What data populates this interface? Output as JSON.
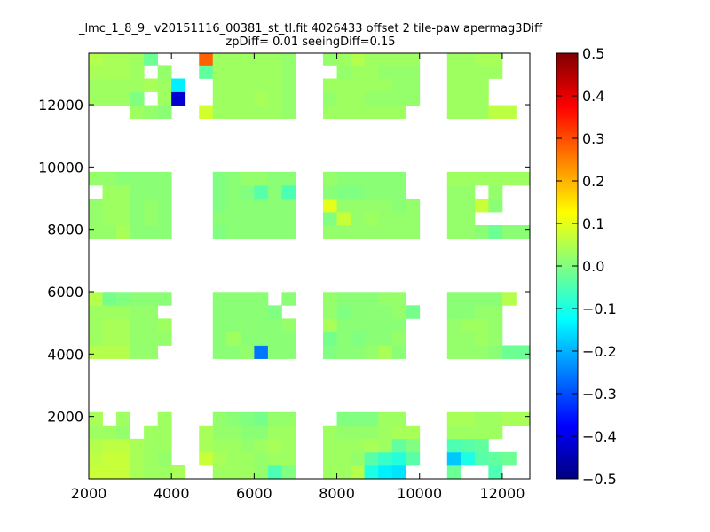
{
  "chart_data": {
    "type": "heatmap",
    "title_line1": "_lmc_1_8_9_ v20151116_00381_st_tl.fit 4026433 offset 2 tile-paw apermag3Diff",
    "title_line2": "zpDiff= 0.01 seeingDiff=0.15",
    "xlabel": "",
    "ylabel": "",
    "xlim": [
      2000,
      12667
    ],
    "ylim": [
      0,
      13650
    ],
    "xticks": [
      "2000",
      "4000",
      "6000",
      "8000",
      "10000",
      "12000"
    ],
    "xtick_values": [
      2000,
      4000,
      6000,
      8000,
      10000,
      12000
    ],
    "yticks": [
      "2000",
      "4000",
      "6000",
      "8000",
      "10000",
      "12000"
    ],
    "ytick_values": [
      2000,
      4000,
      6000,
      8000,
      10000,
      12000
    ],
    "colormap": "jet",
    "clim": [
      -0.5,
      0.5
    ],
    "colorbar_ticks": [
      "0.5",
      "0.4",
      "0.3",
      "0.2",
      "0.1",
      "0.0",
      "−0.1",
      "−0.2",
      "−0.3",
      "−0.4",
      "−0.5"
    ],
    "colorbar_tick_values": [
      0.5,
      0.4,
      0.3,
      0.2,
      0.1,
      0.0,
      -0.1,
      -0.2,
      -0.3,
      -0.4,
      -0.5
    ],
    "bin_x_start": 2000,
    "bin_x_width": 333.33,
    "bin_y_height": 428,
    "grid": false,
    "rows": [
      {
        "bin": 0,
        "values": [
          0.07,
          0.07,
          0.07,
          0.04,
          0.03,
          0.03,
          0.04,
          null,
          null,
          0.03,
          0.03,
          0.03,
          0.02,
          -0.05,
          0.0,
          null,
          null,
          0.03,
          0.03,
          0.05,
          -0.1,
          -0.14,
          -0.15,
          null,
          null,
          null,
          -0.02,
          null,
          null,
          -0.05,
          null,
          null
        ]
      },
      {
        "bin": 1,
        "values": [
          0.06,
          0.07,
          0.07,
          0.04,
          0.03,
          0.02,
          null,
          null,
          0.07,
          0.04,
          0.03,
          0.03,
          0.02,
          0.03,
          0.03,
          null,
          null,
          0.03,
          0.03,
          0.02,
          -0.04,
          -0.07,
          -0.09,
          -0.04,
          null,
          null,
          -0.18,
          -0.1,
          -0.04,
          -0.03,
          -0.02,
          null
        ]
      },
      {
        "bin": 2,
        "values": [
          0.05,
          0.06,
          0.06,
          0.04,
          0.03,
          0.03,
          null,
          null,
          0.04,
          0.03,
          0.03,
          0.02,
          0.03,
          0.04,
          0.03,
          null,
          null,
          0.03,
          0.03,
          0.03,
          0.04,
          0.03,
          -0.03,
          0.0,
          null,
          null,
          -0.05,
          -0.04,
          -0.03,
          null,
          null,
          null
        ]
      },
      {
        "bin": 3,
        "values": [
          0.03,
          0.03,
          0.02,
          null,
          0.03,
          0.03,
          null,
          null,
          0.04,
          0.02,
          0.02,
          0.01,
          0.01,
          0.03,
          0.03,
          null,
          null,
          0.03,
          0.02,
          0.02,
          0.02,
          0.03,
          0.04,
          0.04,
          null,
          null,
          0.03,
          0.03,
          0.03,
          0.03,
          null,
          null
        ]
      },
      {
        "bin": 4,
        "values": [
          0.04,
          null,
          0.03,
          null,
          null,
          0.03,
          null,
          null,
          null,
          0.02,
          0.01,
          0.0,
          -0.01,
          0.02,
          0.02,
          null,
          null,
          null,
          0.0,
          0.0,
          0.0,
          0.03,
          0.03,
          null,
          null,
          null,
          0.04,
          0.04,
          0.03,
          0.03,
          0.04,
          0.04
        ]
      },
      {
        "bin": 9,
        "values": [
          0.05,
          0.05,
          0.05,
          0.02,
          0.02,
          null,
          null,
          null,
          null,
          0.01,
          0.01,
          0.02,
          -0.26,
          0.01,
          0.01,
          null,
          null,
          0.0,
          0.01,
          0.01,
          0.02,
          0.04,
          0.01,
          null,
          null,
          null,
          0.02,
          0.02,
          0.02,
          0.01,
          -0.02,
          -0.02
        ]
      },
      {
        "bin": 10,
        "values": [
          0.03,
          0.04,
          0.04,
          0.02,
          0.02,
          0.02,
          null,
          null,
          null,
          0.01,
          0.03,
          0.01,
          0.01,
          0.01,
          0.01,
          null,
          null,
          -0.01,
          0.01,
          0.0,
          0.01,
          0.01,
          0.02,
          null,
          null,
          null,
          0.02,
          0.02,
          0.03,
          0.02,
          null,
          null
        ]
      },
      {
        "bin": 11,
        "values": [
          0.03,
          0.04,
          0.04,
          0.02,
          0.02,
          0.03,
          null,
          null,
          null,
          0.01,
          0.01,
          0.01,
          0.01,
          0.01,
          0.02,
          null,
          null,
          0.04,
          0.01,
          0.01,
          0.01,
          0.01,
          0.01,
          null,
          null,
          null,
          0.02,
          0.03,
          0.03,
          0.02,
          null,
          null
        ]
      },
      {
        "bin": 12,
        "values": [
          0.03,
          0.03,
          0.03,
          0.02,
          0.02,
          null,
          null,
          null,
          null,
          0.01,
          0.01,
          0.01,
          0.01,
          0.0,
          null,
          null,
          null,
          0.02,
          0.0,
          0.01,
          0.01,
          0.01,
          0.02,
          -0.01,
          null,
          null,
          0.01,
          0.01,
          0.02,
          0.02,
          null,
          null
        ]
      },
      {
        "bin": 13,
        "values": [
          0.05,
          -0.01,
          0.0,
          0.01,
          0.01,
          0.01,
          null,
          null,
          null,
          0.01,
          0.01,
          0.01,
          0.01,
          null,
          0.01,
          null,
          null,
          0.02,
          0.01,
          0.01,
          0.01,
          0.02,
          0.02,
          null,
          null,
          null,
          0.01,
          0.01,
          0.01,
          0.01,
          0.05,
          null
        ]
      },
      {
        "bin": 18,
        "values": [
          0.02,
          0.02,
          0.04,
          0.01,
          0.01,
          0.01,
          null,
          null,
          null,
          0.0,
          0.01,
          0.01,
          0.01,
          0.01,
          0.01,
          null,
          null,
          0.02,
          0.02,
          0.02,
          0.02,
          0.02,
          0.02,
          0.02,
          null,
          null,
          0.02,
          0.02,
          0.01,
          -0.02,
          0.01,
          0.01
        ]
      },
      {
        "bin": 19,
        "values": [
          0.02,
          0.03,
          0.03,
          0.01,
          0.02,
          0.01,
          null,
          null,
          null,
          0.01,
          0.01,
          0.01,
          0.01,
          0.01,
          0.01,
          null,
          null,
          0.0,
          0.07,
          0.02,
          0.03,
          0.02,
          0.02,
          0.02,
          null,
          null,
          0.02,
          0.02,
          null,
          null,
          null,
          null
        ]
      },
      {
        "bin": 20,
        "values": [
          0.02,
          0.03,
          0.03,
          0.01,
          0.02,
          0.01,
          null,
          null,
          null,
          0.0,
          0.01,
          0.01,
          0.01,
          0.01,
          0.01,
          null,
          null,
          0.1,
          0.02,
          0.02,
          0.02,
          0.02,
          0.01,
          0.02,
          null,
          null,
          0.02,
          0.02,
          0.07,
          0.01,
          null,
          null
        ]
      },
      {
        "bin": 21,
        "values": [
          null,
          0.03,
          0.03,
          0.01,
          0.01,
          0.01,
          null,
          null,
          null,
          0.0,
          0.01,
          0.0,
          -0.04,
          0.01,
          -0.05,
          null,
          null,
          0.01,
          0.0,
          0.0,
          0.01,
          0.01,
          0.01,
          null,
          null,
          null,
          0.02,
          0.02,
          null,
          0.02,
          null,
          null
        ]
      },
      {
        "bin": 22,
        "values": [
          0.02,
          0.02,
          0.01,
          0.01,
          0.01,
          0.01,
          null,
          null,
          null,
          0.0,
          0.01,
          0.02,
          0.02,
          0.01,
          0.01,
          null,
          null,
          0.02,
          0.01,
          0.01,
          0.01,
          0.01,
          0.01,
          null,
          null,
          null,
          0.03,
          0.03,
          0.03,
          0.03,
          0.03,
          0.03
        ]
      },
      {
        "bin": 27,
        "values": [
          null,
          null,
          null,
          0.03,
          0.02,
          0.01,
          null,
          null,
          0.08,
          0.03,
          0.03,
          0.03,
          0.03,
          0.03,
          0.02,
          null,
          null,
          0.03,
          0.03,
          0.03,
          0.03,
          0.03,
          0.03,
          null,
          null,
          null,
          0.03,
          0.03,
          0.03,
          0.06,
          0.06,
          null
        ]
      },
      {
        "bin": 28,
        "values": [
          0.03,
          0.03,
          0.03,
          0.0,
          null,
          0.03,
          -0.42,
          null,
          null,
          0.03,
          0.03,
          0.03,
          0.04,
          0.03,
          0.02,
          null,
          null,
          0.02,
          0.03,
          0.03,
          0.02,
          0.02,
          0.02,
          0.02,
          null,
          null,
          0.03,
          0.03,
          0.03,
          null,
          null,
          null
        ]
      },
      {
        "bin": 29,
        "values": [
          0.03,
          0.03,
          0.03,
          0.03,
          0.04,
          0.03,
          -0.14,
          null,
          null,
          0.03,
          0.03,
          0.03,
          0.03,
          0.03,
          0.02,
          null,
          null,
          0.03,
          0.03,
          0.03,
          0.03,
          0.03,
          0.02,
          0.02,
          null,
          null,
          0.03,
          0.03,
          0.03,
          null,
          null,
          null
        ]
      },
      {
        "bin": 30,
        "values": [
          0.04,
          0.04,
          0.04,
          0.03,
          null,
          0.02,
          null,
          null,
          -0.03,
          0.03,
          0.03,
          0.03,
          0.03,
          0.03,
          0.02,
          null,
          null,
          null,
          0.02,
          0.03,
          0.03,
          0.02,
          0.02,
          0.02,
          null,
          null,
          0.03,
          0.03,
          0.03,
          0.03,
          null,
          null
        ]
      },
      {
        "bin": 31,
        "values": [
          0.05,
          0.04,
          0.04,
          0.03,
          -0.02,
          null,
          null,
          null,
          0.28,
          0.03,
          0.03,
          0.03,
          0.03,
          0.03,
          0.02,
          null,
          null,
          0.02,
          0.03,
          0.05,
          0.03,
          0.03,
          0.03,
          0.03,
          null,
          null,
          0.03,
          0.03,
          0.04,
          0.04,
          null,
          null
        ]
      }
    ]
  }
}
